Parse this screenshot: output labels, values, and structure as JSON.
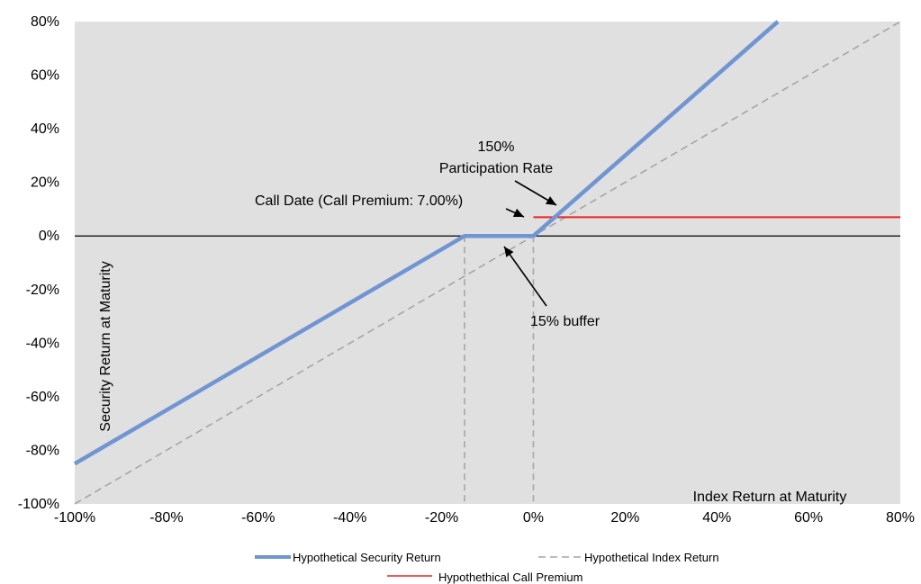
{
  "chart_data": {
    "type": "line",
    "xlabel": "Index Return at Maturity",
    "ylabel": "Security Return at Maturity",
    "xlim": [
      -100,
      80
    ],
    "ylim": [
      -100,
      80
    ],
    "x_ticks": [
      "-100%",
      "-80%",
      "-60%",
      "-40%",
      "-20%",
      "0%",
      "20%",
      "40%",
      "60%",
      "80%"
    ],
    "y_ticks": [
      "80%",
      "60%",
      "40%",
      "20%",
      "0%",
      "-20%",
      "-40%",
      "-60%",
      "-80%",
      "-100%"
    ],
    "grid": false,
    "legend_position": "bottom",
    "colors": {
      "plot_background": "#e0e0e0",
      "security": "#6f95d3",
      "index": "#a6a6a6",
      "call_premium": "#ee2222"
    },
    "series": [
      {
        "name": "Hypothetical Security Return",
        "x": [
          -100,
          -15,
          0,
          53.3
        ],
        "y": [
          -85,
          0,
          0,
          80
        ]
      },
      {
        "name": "Hypothetical Index Return",
        "x": [
          -100,
          80
        ],
        "y": [
          -100,
          80
        ]
      },
      {
        "name": "Hypothethical Call Premium",
        "x": [
          0,
          80
        ],
        "y": [
          7,
          7
        ]
      }
    ],
    "reference_lines": {
      "vertical_x": [
        -15,
        0
      ],
      "horizontal_y": [
        0
      ]
    },
    "annotations": {
      "participation_line1": "150%",
      "participation_line2": "Participation Rate",
      "call_date": "Call Date (Call Premium: 7.00%)",
      "buffer": "15% buffer"
    }
  }
}
